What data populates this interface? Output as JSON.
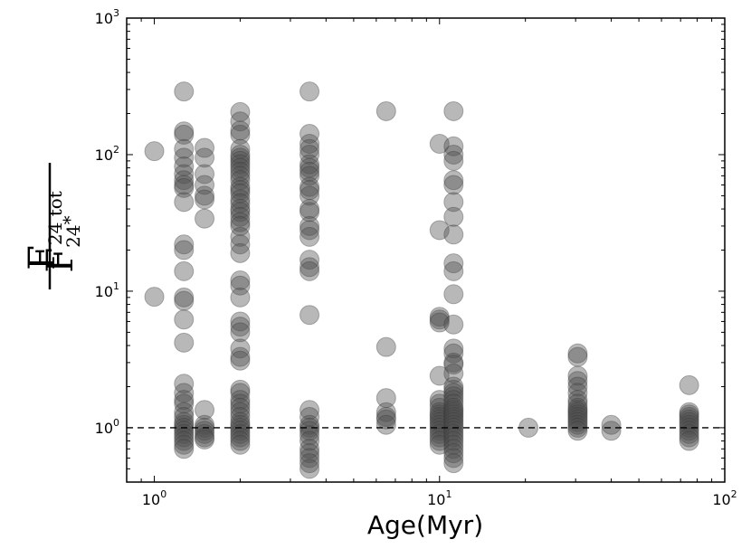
{
  "chart_data": {
    "type": "scatter",
    "title": "",
    "xlabel": "Age(Myr)",
    "xscale": "log",
    "yscale": "log",
    "xlim": [
      0.8,
      100
    ],
    "ylim": [
      0.4,
      1000
    ],
    "x_ticks": [
      {
        "base": "10",
        "exp": "0",
        "value": 1
      },
      {
        "base": "10",
        "exp": "1",
        "value": 10
      },
      {
        "base": "10",
        "exp": "2",
        "value": 100
      }
    ],
    "y_ticks": [
      {
        "base": "10",
        "exp": "0",
        "value": 1
      },
      {
        "base": "10",
        "exp": "1",
        "value": 10
      },
      {
        "base": "10",
        "exp": "2",
        "value": 100
      },
      {
        "base": "10",
        "exp": "3",
        "value": 1000
      }
    ],
    "ylabel": {
      "numerator_main": "F",
      "numerator_sub": "24 tot",
      "denominator_main": "F",
      "denominator_sub": "24",
      "denominator_sup": "*"
    },
    "reference_line": {
      "y": 1,
      "style": "dashed"
    },
    "marker_color": "#4d4d4d",
    "marker_alpha": 0.4,
    "groups": [
      {
        "x": 1.0,
        "y": [
          106,
          9.1
        ]
      },
      {
        "x": 1.27,
        "y": [
          290,
          148,
          140,
          110,
          95,
          82,
          72,
          65,
          60,
          57,
          45,
          22,
          20,
          14,
          9,
          8.5,
          6.2,
          4.2,
          2.1,
          1.8,
          1.6,
          1.5,
          1.3,
          1.2,
          1.1,
          1.05,
          1.0,
          0.95,
          0.9,
          0.85,
          0.8,
          0.75,
          0.7
        ]
      },
      {
        "x": 1.5,
        "y": [
          112,
          95,
          72,
          60,
          50,
          47,
          34,
          1.35,
          1.05,
          1.0,
          0.95,
          0.9,
          0.85,
          0.82
        ]
      },
      {
        "x": 2.0,
        "y": [
          205,
          175,
          150,
          140,
          110,
          100,
          95,
          90,
          85,
          80,
          75,
          70,
          65,
          58,
          55,
          52,
          47,
          44,
          40,
          38,
          35,
          32,
          30,
          25,
          22,
          19,
          12,
          11,
          9,
          6,
          5.5,
          5,
          3.8,
          3.3,
          3.1,
          1.9,
          1.8,
          1.6,
          1.5,
          1.4,
          1.3,
          1.2,
          1.1,
          1.05,
          1.0,
          0.95,
          0.9,
          0.85,
          0.8,
          0.75
        ]
      },
      {
        "x": 3.5,
        "y": [
          290,
          142,
          120,
          110,
          100,
          85,
          80,
          75,
          70,
          58,
          55,
          50,
          40,
          38,
          30,
          28,
          25,
          17,
          15,
          14,
          6.7,
          1.35,
          1.2,
          1.05,
          1.0,
          0.95,
          0.88,
          0.8,
          0.7,
          0.65,
          0.6,
          0.55,
          0.5
        ]
      },
      {
        "x": 6.5,
        "y": [
          208,
          3.9,
          1.65,
          1.3,
          1.2,
          1.15,
          1.05
        ]
      },
      {
        "x": 10.0,
        "y": [
          120,
          28,
          6.5,
          6.2,
          5.9,
          2.4,
          1.6,
          1.5,
          1.4,
          1.3,
          1.25,
          1.2,
          1.15,
          1.1,
          1.05,
          1.0,
          0.95,
          0.9,
          0.85,
          0.8,
          0.75
        ]
      },
      {
        "x": 11.2,
        "y": [
          208,
          115,
          100,
          90,
          65,
          60,
          45,
          35,
          26,
          16,
          14,
          9.5,
          5.7,
          3.8,
          3.5,
          3.0,
          2.9,
          2.5,
          2.0,
          1.9,
          1.8,
          1.7,
          1.6,
          1.5,
          1.4,
          1.35,
          1.3,
          1.25,
          1.2,
          1.15,
          1.1,
          1.05,
          1.0,
          0.95,
          0.9,
          0.85,
          0.8,
          0.75,
          0.7,
          0.65,
          0.6,
          0.55
        ]
      },
      {
        "x": 20.5,
        "y": [
          1.0
        ]
      },
      {
        "x": 30.5,
        "y": [
          3.5,
          3.3,
          2.4,
          2.2,
          2.0,
          1.8,
          1.6,
          1.5,
          1.4,
          1.35,
          1.3,
          1.25,
          1.2,
          1.15,
          1.1,
          1.05,
          1.0,
          0.95
        ]
      },
      {
        "x": 40.0,
        "y": [
          1.05,
          0.95
        ]
      },
      {
        "x": 75.0,
        "y": [
          2.05,
          1.3,
          1.25,
          1.2,
          1.15,
          1.1,
          1.05,
          1.0,
          0.95,
          0.9,
          0.85,
          0.8
        ]
      }
    ]
  }
}
